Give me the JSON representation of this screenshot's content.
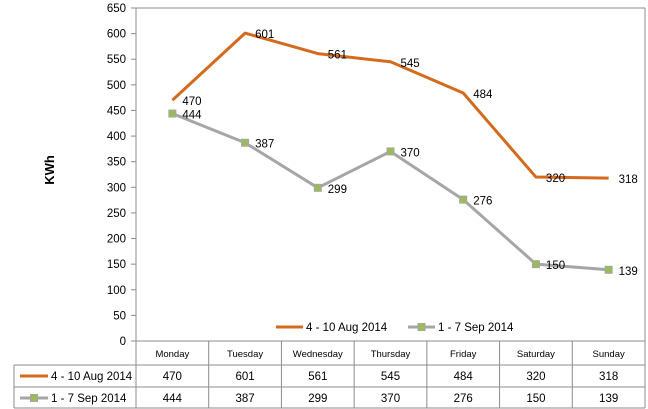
{
  "chart_data": {
    "type": "line",
    "ylabel": "KWh",
    "ylim": [
      0,
      650
    ],
    "yticks": [
      0,
      50,
      100,
      150,
      200,
      250,
      300,
      350,
      400,
      450,
      500,
      550,
      600,
      650
    ],
    "categories": [
      "Monday",
      "Tuesday",
      "Wednesday",
      "Thursday",
      "Friday",
      "Saturday",
      "Sunday"
    ],
    "series": [
      {
        "name": "4 - 10 Aug 2014",
        "values": [
          470,
          601,
          561,
          545,
          484,
          320,
          318
        ],
        "color": "#D46A1E",
        "marker": "none"
      },
      {
        "name": "1 - 7 Sep 2014",
        "values": [
          444,
          387,
          299,
          370,
          276,
          150,
          139
        ],
        "color": "#A6A6A6",
        "marker": "square",
        "marker_fill": "#9BBB59"
      }
    ],
    "legend": "bottom-center inside plot",
    "grid": false,
    "data_table": true
  }
}
